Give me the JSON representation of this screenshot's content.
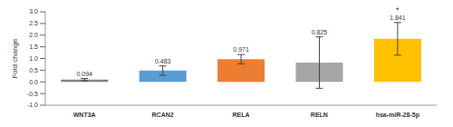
{
  "chart_data": {
    "type": "bar",
    "y_label": "Fold change",
    "categories": [
      "WNT3A",
      "RCAN2",
      "RELA",
      "RELN",
      "hsa-miR-28-5p"
    ],
    "values": [
      0.094,
      0.483,
      0.971,
      0.825,
      1.841
    ],
    "errors": [
      0.05,
      0.2,
      0.2,
      1.1,
      0.7
    ],
    "colors": [
      "#7f7f7f",
      "#5b9bd5",
      "#ed7d31",
      "#a5a5a5",
      "#ffc000"
    ],
    "ylim": [
      -1,
      3
    ],
    "yticks": [
      {
        "value": -1,
        "label": "-1.0"
      },
      -0.5,
      {
        "value": 0,
        "label": "0.0"
      },
      0.5,
      {
        "value": 1,
        "label": "1.0"
      },
      1.5,
      {
        "value": 2,
        "label": "2.0"
      },
      2.5,
      {
        "value": 3,
        "label": "3.0"
      }
    ],
    "grid": false,
    "data_labels": true,
    "annotations": [
      {
        "text": "*",
        "category": "hsa-miR-28-5p"
      }
    ]
  }
}
